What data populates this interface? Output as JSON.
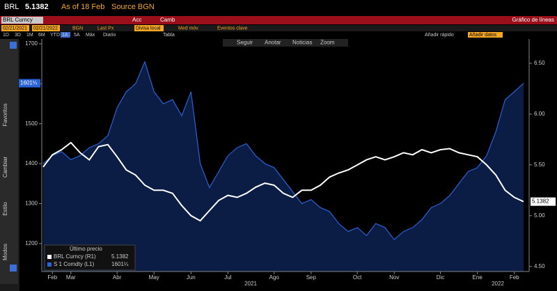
{
  "header": {
    "ticker": "BRL",
    "price": "5.1382",
    "as_of": "As of 18 Feb",
    "source": "Source BGN"
  },
  "command_bar": {
    "security": "BRL Curncy",
    "buttons": [
      "Acc",
      "Camb"
    ],
    "chart_name": "Gráfico de líneas"
  },
  "settings_bar": {
    "start": "02/21/2021",
    "end": "02/21/2022",
    "source": "BGN",
    "field": "Last Px",
    "currency": "Divisa local",
    "options": [
      "Med móv",
      "Eventos clave"
    ]
  },
  "periods": [
    "1D",
    "3D",
    "1M",
    "6M",
    "YTD",
    "1A",
    "5A",
    "Máx"
  ],
  "frequency": "Diario",
  "table": "Tabla",
  "quick_add": "Añadir rápido",
  "add_data": "Añadir datos",
  "toolbar": [
    "Seguir",
    "Anotar",
    "Noticias",
    "Zoom"
  ],
  "sidebar": [
    "Favoritos",
    "Cambiar",
    "Estilo",
    "Modos"
  ],
  "chart_data": {
    "type": "line",
    "categories": [
      null,
      "Feb",
      null,
      "Mar",
      null,
      null,
      null,
      null,
      "Abr",
      null,
      null,
      null,
      "May",
      null,
      null,
      null,
      "Jun",
      null,
      null,
      null,
      "Jul",
      null,
      null,
      null,
      null,
      "Ago",
      null,
      null,
      null,
      "Sep",
      null,
      null,
      null,
      null,
      "Oct",
      null,
      null,
      null,
      "Nov",
      null,
      null,
      null,
      null,
      "Dic",
      null,
      null,
      null,
      "Ene",
      null,
      null,
      null,
      "Feb",
      null
    ],
    "year_labels": [
      "2021",
      "2022"
    ],
    "legend_title": "Último precio",
    "series": [
      {
        "name": "BRL Curncy (R1)",
        "color": "#ffffff",
        "axis": "y2",
        "values": [
          5.48,
          5.6,
          5.65,
          5.72,
          5.62,
          5.55,
          5.68,
          5.7,
          5.58,
          5.45,
          5.4,
          5.3,
          5.25,
          5.25,
          5.22,
          5.1,
          5.0,
          4.95,
          5.05,
          5.15,
          5.2,
          5.18,
          5.22,
          5.28,
          5.32,
          5.3,
          5.22,
          5.18,
          5.25,
          5.25,
          5.3,
          5.38,
          5.42,
          5.45,
          5.5,
          5.55,
          5.58,
          5.55,
          5.58,
          5.62,
          5.6,
          5.65,
          5.62,
          5.65,
          5.66,
          5.62,
          5.6,
          5.58,
          5.5,
          5.4,
          5.25,
          5.18,
          5.1382
        ]
      },
      {
        "name": "S 1 Comdty (L1)",
        "color": "#2a62d8",
        "fill": "#0b1d45",
        "last_label": "1601¼",
        "values": [
          1400,
          1420,
          1430,
          1410,
          1420,
          1440,
          1450,
          1470,
          1540,
          1580,
          1600,
          1655,
          1580,
          1550,
          1560,
          1520,
          1580,
          1400,
          1340,
          1380,
          1420,
          1440,
          1450,
          1420,
          1400,
          1390,
          1360,
          1330,
          1300,
          1310,
          1290,
          1280,
          1250,
          1230,
          1240,
          1220,
          1250,
          1240,
          1210,
          1230,
          1240,
          1260,
          1290,
          1300,
          1320,
          1350,
          1380,
          1390,
          1420,
          1480,
          1560,
          1580,
          1601.25
        ]
      }
    ],
    "ylim": [
      1130,
      1712
    ],
    "yticks": [
      1200,
      1300,
      1400,
      1500,
      1600,
      1700
    ],
    "y2lim": [
      4.45,
      6.74
    ],
    "y2ticks": [
      {
        "value": 4.5,
        "label": "4.50"
      },
      {
        "value": 5,
        "label": "5.00"
      },
      {
        "value": 5.5,
        "label": "5.50"
      },
      {
        "value": 6,
        "label": "6.00"
      },
      {
        "value": 6.5,
        "label": "6.50"
      }
    ],
    "grid": false
  }
}
